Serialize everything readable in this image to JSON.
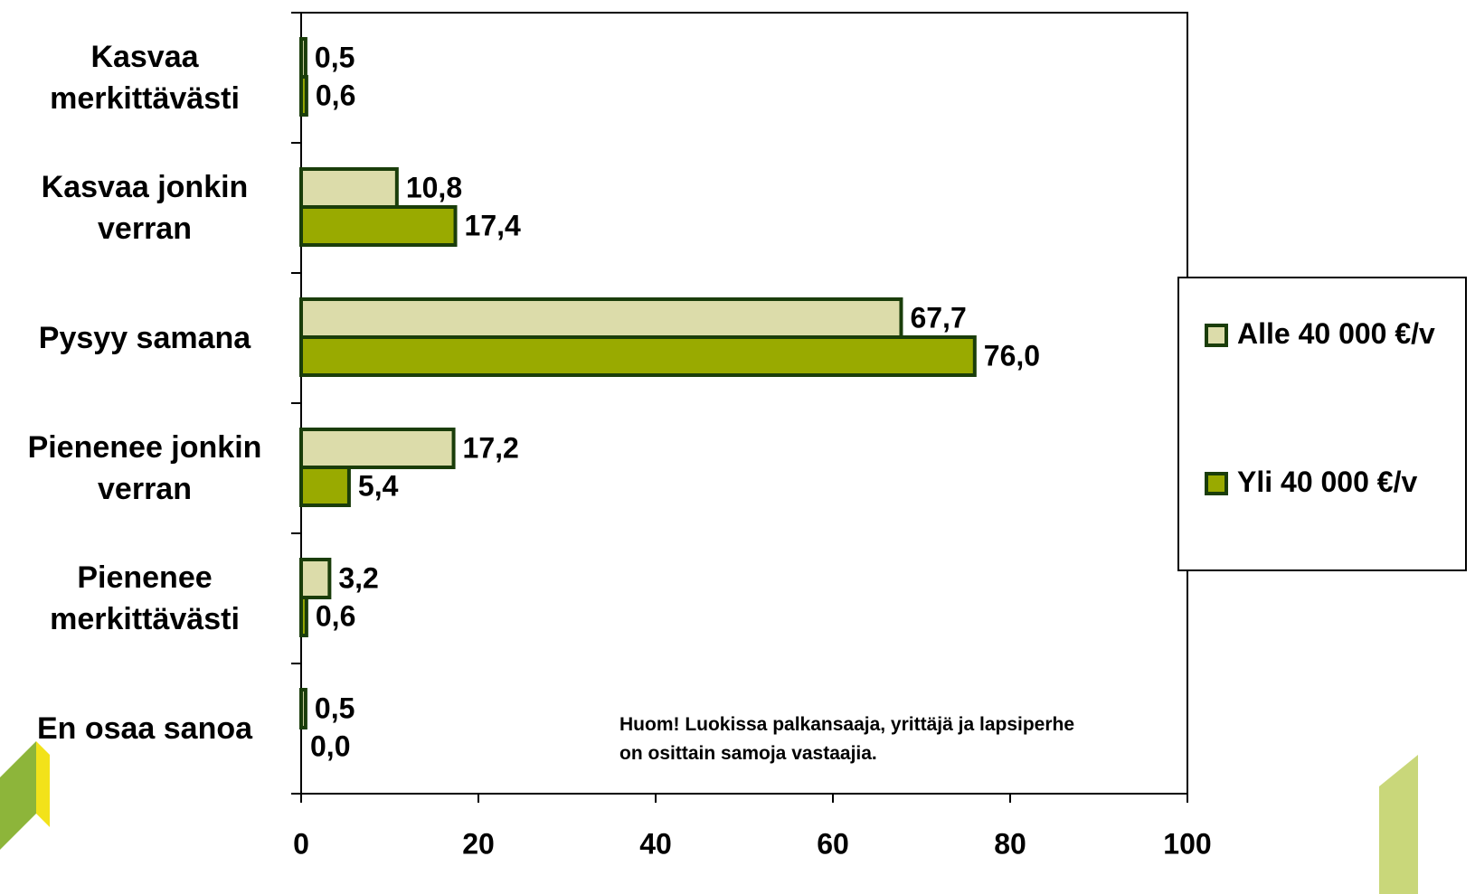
{
  "chart_data": {
    "type": "hbar",
    "categories": [
      "Kasvaa merkittävästi",
      "Kasvaa jonkin verran",
      "Pysyy samana",
      "Pienenee jonkin verran",
      "Pienenee merkittävästi",
      "En osaa sanoa"
    ],
    "series": [
      {
        "name": "Alle 40 000 €/v",
        "color": "#dcdcaa",
        "values": [
          0.5,
          10.8,
          67.7,
          17.2,
          3.2,
          0.5
        ],
        "value_labels": [
          "0,5",
          "10,8",
          "67,7",
          "17,2",
          "3,2",
          "0,5"
        ]
      },
      {
        "name": "Yli 40 000 €/v",
        "color": "#99aa00",
        "values": [
          0.6,
          17.4,
          76.0,
          5.4,
          0.6,
          0.0
        ],
        "value_labels": [
          "0,6",
          "17,4",
          "76,0",
          "5,4",
          "0,6",
          "0,0"
        ]
      }
    ],
    "xlim": [
      0,
      100
    ],
    "xticks": [
      0,
      20,
      40,
      60,
      80,
      100
    ],
    "annotation": "Huom! Luokissa palkansaaja, yrittäjä ja lapsiperhe on osittain samoja vastaajia.",
    "legend": "right"
  }
}
